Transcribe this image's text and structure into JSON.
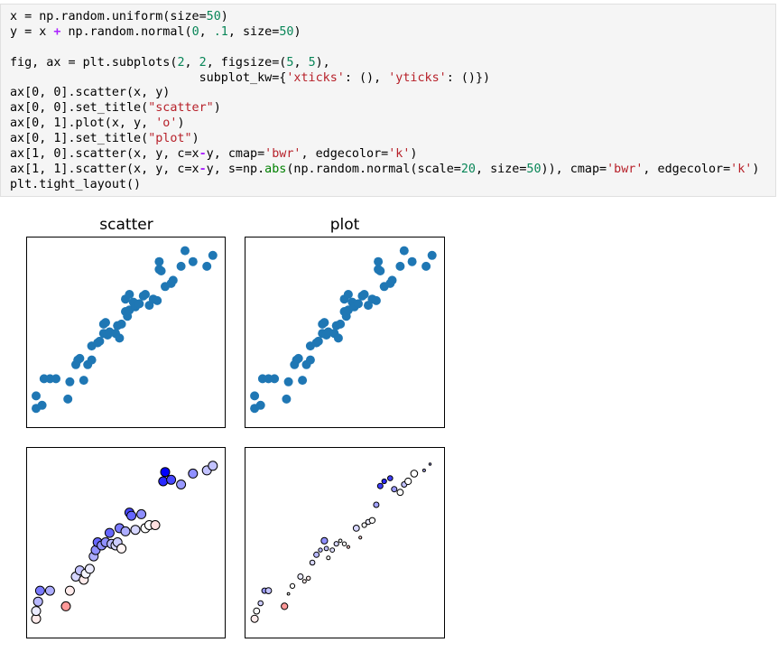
{
  "code_cell": {
    "lines": [
      [
        {
          "t": "x = np.random.uniform(size="
        },
        {
          "t": "50",
          "c": "num"
        },
        {
          "t": ")"
        }
      ],
      [
        {
          "t": "y = x "
        },
        {
          "t": "+",
          "c": "op"
        },
        {
          "t": " np.random.normal("
        },
        {
          "t": "0",
          "c": "num"
        },
        {
          "t": ", "
        },
        {
          "t": ".1",
          "c": "num"
        },
        {
          "t": ", size="
        },
        {
          "t": "50",
          "c": "num"
        },
        {
          "t": ")"
        }
      ],
      [
        {
          "t": ""
        }
      ],
      [
        {
          "t": "fig, ax = plt.subplots("
        },
        {
          "t": "2",
          "c": "num"
        },
        {
          "t": ", "
        },
        {
          "t": "2",
          "c": "num"
        },
        {
          "t": ", figsize=("
        },
        {
          "t": "5",
          "c": "num"
        },
        {
          "t": ", "
        },
        {
          "t": "5",
          "c": "num"
        },
        {
          "t": "),"
        }
      ],
      [
        {
          "t": "                          subplot_kw={"
        },
        {
          "t": "'xticks'",
          "c": "str"
        },
        {
          "t": ": (), "
        },
        {
          "t": "'yticks'",
          "c": "str"
        },
        {
          "t": ": ()})"
        }
      ],
      [
        {
          "t": "ax[0, 0].scatter(x, y)"
        }
      ],
      [
        {
          "t": "ax[0, 0].set_title("
        },
        {
          "t": "\"scatter\"",
          "c": "str"
        },
        {
          "t": ")"
        }
      ],
      [
        {
          "t": "ax[0, 1].plot(x, y, "
        },
        {
          "t": "'o'",
          "c": "str"
        },
        {
          "t": ")"
        }
      ],
      [
        {
          "t": "ax[0, 1].set_title("
        },
        {
          "t": "\"plot\"",
          "c": "str"
        },
        {
          "t": ")"
        }
      ],
      [
        {
          "t": "ax[1, 0].scatter(x, y, c=x"
        },
        {
          "t": "-",
          "c": "op"
        },
        {
          "t": "y, cmap="
        },
        {
          "t": "'bwr'",
          "c": "str"
        },
        {
          "t": ", edgecolor="
        },
        {
          "t": "'k'",
          "c": "str"
        },
        {
          "t": ")"
        }
      ],
      [
        {
          "t": "ax[1, 1].scatter(x, y, c=x"
        },
        {
          "t": "-",
          "c": "op"
        },
        {
          "t": "y, s=np."
        },
        {
          "t": "abs",
          "c": "fn"
        },
        {
          "t": "(np.random.normal(scale="
        },
        {
          "t": "20",
          "c": "num"
        },
        {
          "t": ", size="
        },
        {
          "t": "50",
          "c": "num"
        },
        {
          "t": ")), cmap="
        },
        {
          "t": "'bwr'",
          "c": "str"
        },
        {
          "t": ", edgecolor="
        },
        {
          "t": "'k'",
          "c": "str"
        },
        {
          "t": ")"
        }
      ],
      [
        {
          "t": "plt.tight_layout()"
        }
      ]
    ]
  },
  "chart_data": [
    {
      "type": "scatter",
      "title": "scatter",
      "xlabel": "",
      "ylabel": "",
      "xticks": [],
      "yticks": [],
      "marker_color": "#1f77b4",
      "xlim": [
        0,
        1
      ],
      "ylim": [
        -0.1,
        1.12
      ],
      "x": [
        0.05,
        0.05,
        0.08,
        0.09,
        0.12,
        0.15,
        0.21,
        0.22,
        0.25,
        0.26,
        0.27,
        0.29,
        0.31,
        0.33,
        0.33,
        0.36,
        0.37,
        0.39,
        0.39,
        0.4,
        0.41,
        0.42,
        0.45,
        0.46,
        0.47,
        0.48,
        0.5,
        0.5,
        0.51,
        0.52,
        0.52,
        0.54,
        0.55,
        0.57,
        0.59,
        0.6,
        0.62,
        0.64,
        0.66,
        0.67,
        0.67,
        0.68,
        0.7,
        0.73,
        0.74,
        0.78,
        0.8,
        0.84,
        0.91,
        0.94
      ],
      "y": [
        0.02,
        0.1,
        0.04,
        0.21,
        0.21,
        0.21,
        0.08,
        0.19,
        0.3,
        0.33,
        0.34,
        0.2,
        0.3,
        0.33,
        0.42,
        0.44,
        0.45,
        0.5,
        0.56,
        0.57,
        0.49,
        0.51,
        0.5,
        0.55,
        0.47,
        0.56,
        0.64,
        0.72,
        0.61,
        0.75,
        0.65,
        0.7,
        0.67,
        0.69,
        0.74,
        0.75,
        0.68,
        0.72,
        0.71,
        0.91,
        0.96,
        0.9,
        0.8,
        0.82,
        0.84,
        0.93,
        1.03,
        0.96,
        0.93,
        1.0
      ]
    },
    {
      "type": "scatter",
      "title": "plot",
      "xlabel": "",
      "ylabel": "",
      "xticks": [],
      "yticks": [],
      "marker": "o",
      "marker_color": "#1f77b4",
      "xlim": [
        0,
        1
      ],
      "ylim": [
        -0.1,
        1.12
      ],
      "x": [
        0.05,
        0.05,
        0.08,
        0.09,
        0.12,
        0.15,
        0.21,
        0.22,
        0.25,
        0.26,
        0.27,
        0.29,
        0.31,
        0.33,
        0.33,
        0.36,
        0.37,
        0.39,
        0.39,
        0.4,
        0.41,
        0.42,
        0.45,
        0.46,
        0.47,
        0.48,
        0.5,
        0.5,
        0.51,
        0.52,
        0.52,
        0.54,
        0.55,
        0.57,
        0.59,
        0.6,
        0.62,
        0.64,
        0.66,
        0.67,
        0.67,
        0.68,
        0.7,
        0.73,
        0.74,
        0.78,
        0.8,
        0.84,
        0.91,
        0.94
      ],
      "y": [
        0.02,
        0.1,
        0.04,
        0.21,
        0.21,
        0.21,
        0.08,
        0.19,
        0.3,
        0.33,
        0.34,
        0.2,
        0.3,
        0.33,
        0.42,
        0.44,
        0.45,
        0.5,
        0.56,
        0.57,
        0.49,
        0.51,
        0.5,
        0.55,
        0.47,
        0.56,
        0.64,
        0.72,
        0.61,
        0.75,
        0.65,
        0.7,
        0.67,
        0.69,
        0.74,
        0.75,
        0.68,
        0.72,
        0.71,
        0.91,
        0.96,
        0.9,
        0.8,
        0.82,
        0.84,
        0.93,
        1.03,
        0.96,
        0.93,
        1.0
      ]
    },
    {
      "type": "scatter",
      "title": "",
      "xlabel": "",
      "ylabel": "",
      "xticks": [],
      "yticks": [],
      "cmap": "bwr",
      "edgecolor": "#000000",
      "clim": [
        -0.25,
        0.25
      ],
      "xlim": [
        0,
        1
      ],
      "ylim": [
        -0.1,
        1.12
      ],
      "x": [
        0.05,
        0.05,
        0.06,
        0.07,
        0.12,
        0.2,
        0.22,
        0.25,
        0.27,
        0.29,
        0.3,
        0.32,
        0.34,
        0.35,
        0.36,
        0.38,
        0.4,
        0.42,
        0.43,
        0.45,
        0.46,
        0.47,
        0.48,
        0.5,
        0.52,
        0.53,
        0.55,
        0.58,
        0.6,
        0.62,
        0.65,
        0.69,
        0.7,
        0.73,
        0.78,
        0.84,
        0.91,
        0.94
      ],
      "y": [
        0.02,
        0.07,
        0.13,
        0.2,
        0.2,
        0.1,
        0.2,
        0.29,
        0.33,
        0.27,
        0.31,
        0.34,
        0.42,
        0.46,
        0.51,
        0.49,
        0.51,
        0.57,
        0.5,
        0.49,
        0.51,
        0.6,
        0.47,
        0.58,
        0.7,
        0.68,
        0.59,
        0.69,
        0.6,
        0.62,
        0.62,
        0.9,
        0.96,
        0.91,
        0.88,
        0.95,
        0.97,
        1.0
      ],
      "c": [
        0.02,
        -0.02,
        -0.07,
        -0.13,
        -0.08,
        0.1,
        0.02,
        -0.04,
        -0.06,
        0.02,
        -0.01,
        -0.02,
        -0.08,
        -0.11,
        -0.15,
        -0.11,
        -0.11,
        -0.15,
        -0.07,
        -0.04,
        -0.05,
        -0.13,
        0.01,
        -0.08,
        -0.18,
        -0.15,
        -0.04,
        -0.11,
        0.0,
        0.0,
        0.03,
        -0.21,
        -0.26,
        -0.18,
        -0.1,
        -0.11,
        -0.06,
        -0.06
      ]
    },
    {
      "type": "scatter",
      "title": "",
      "xlabel": "",
      "ylabel": "",
      "xticks": [],
      "yticks": [],
      "cmap": "bwr",
      "edgecolor": "#000000",
      "clim": [
        -0.25,
        0.25
      ],
      "size_min_px": 1.2,
      "size_max_px": 6.0,
      "xlim": [
        0,
        1
      ],
      "ylim": [
        -0.1,
        1.12
      ],
      "x": [
        0.05,
        0.06,
        0.08,
        0.1,
        0.12,
        0.2,
        0.22,
        0.24,
        0.28,
        0.3,
        0.32,
        0.34,
        0.36,
        0.38,
        0.4,
        0.41,
        0.42,
        0.44,
        0.46,
        0.48,
        0.5,
        0.52,
        0.56,
        0.58,
        0.6,
        0.62,
        0.64,
        0.66,
        0.68,
        0.7,
        0.73,
        0.75,
        0.78,
        0.8,
        0.82,
        0.85,
        0.9,
        0.93
      ],
      "y": [
        0.02,
        0.07,
        0.12,
        0.2,
        0.2,
        0.1,
        0.18,
        0.23,
        0.29,
        0.26,
        0.28,
        0.38,
        0.43,
        0.46,
        0.52,
        0.47,
        0.41,
        0.46,
        0.5,
        0.52,
        0.5,
        0.48,
        0.6,
        0.54,
        0.62,
        0.64,
        0.65,
        0.75,
        0.87,
        0.9,
        0.92,
        0.85,
        0.83,
        0.88,
        0.9,
        0.95,
        0.97,
        1.01
      ],
      "c": [
        0.02,
        0.0,
        -0.05,
        -0.1,
        -0.06,
        0.1,
        0.0,
        0.0,
        -0.02,
        0.02,
        0.02,
        -0.04,
        -0.07,
        -0.07,
        -0.11,
        -0.06,
        0.0,
        -0.03,
        -0.04,
        0.0,
        0.0,
        0.05,
        -0.04,
        0.04,
        0.0,
        -0.02,
        0.0,
        -0.09,
        -0.19,
        -0.21,
        -0.19,
        -0.1,
        0.0,
        -0.06,
        0.0,
        0.0,
        -0.07,
        -0.08
      ],
      "s": [
        4.0,
        3.4,
        2.8,
        3.0,
        3.4,
        3.6,
        1.4,
        2.6,
        3.0,
        2.0,
        2.2,
        2.8,
        3.0,
        2.2,
        3.6,
        2.4,
        2.0,
        2.4,
        2.6,
        1.8,
        2.2,
        1.6,
        3.4,
        1.6,
        2.6,
        2.8,
        3.2,
        3.0,
        3.0,
        2.6,
        2.8,
        3.0,
        3.4,
        3.0,
        3.6,
        3.8,
        1.5,
        1.2
      ]
    }
  ]
}
